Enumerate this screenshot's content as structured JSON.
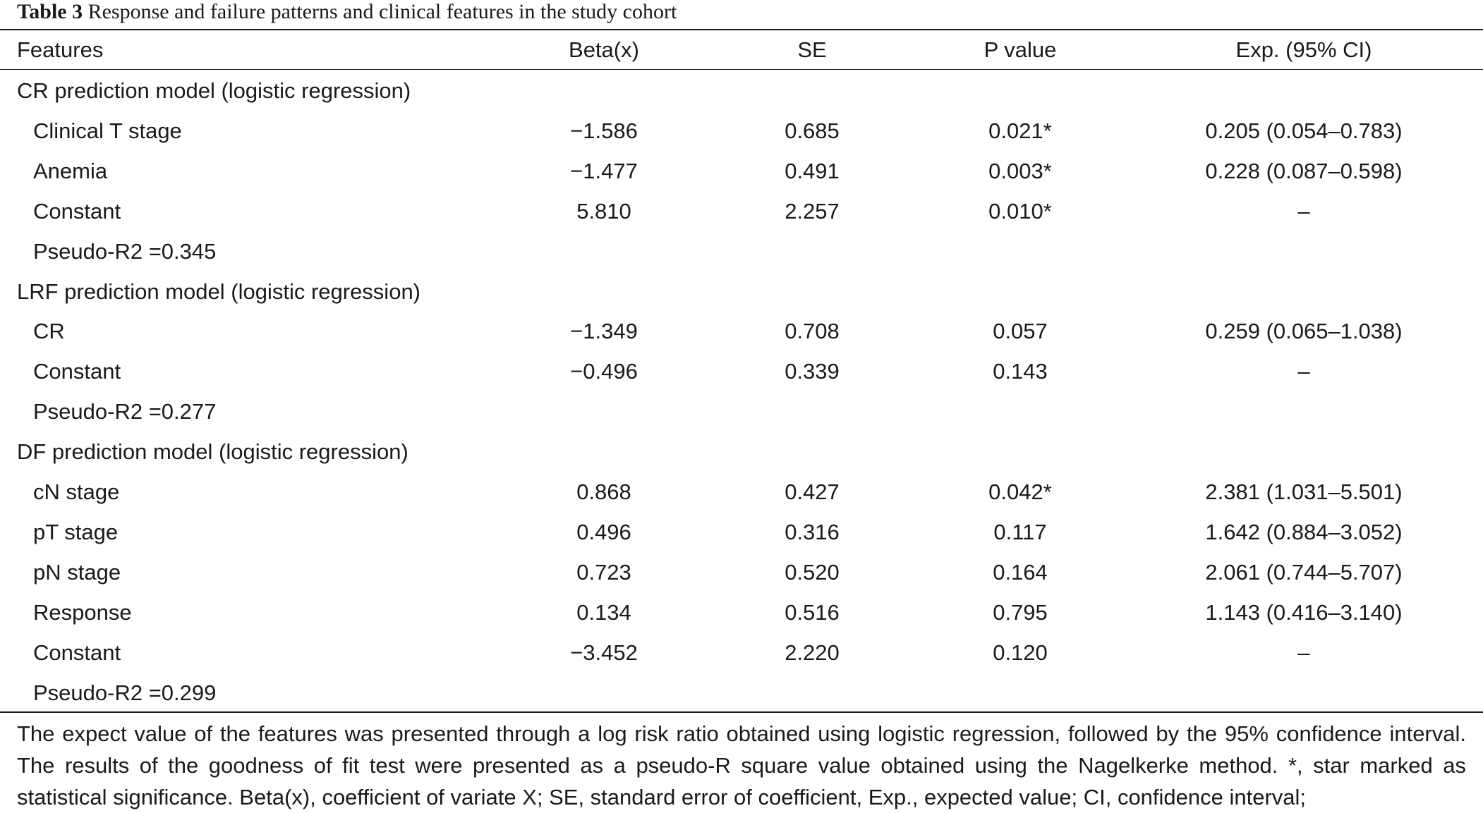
{
  "caption": {
    "label": "Table 3",
    "text": " Response and failure patterns and clinical features in the study cohort"
  },
  "table": {
    "header": [
      "Features",
      "Beta(x)",
      "SE",
      "P value",
      "Exp. (95% CI)"
    ],
    "rows": [
      {
        "kind": "section",
        "label": "CR prediction model (logistic regression)",
        "beta": "",
        "se": "",
        "p": "",
        "exp": ""
      },
      {
        "kind": "item",
        "label": "Clinical T stage",
        "beta": "−1.586",
        "se": "0.685",
        "p": "0.021*",
        "exp": "0.205 (0.054–0.783)"
      },
      {
        "kind": "item",
        "label": "Anemia",
        "beta": "−1.477",
        "se": "0.491",
        "p": "0.003*",
        "exp": "0.228 (0.087–0.598)"
      },
      {
        "kind": "item",
        "label": "Constant",
        "beta": "5.810",
        "se": "2.257",
        "p": "0.010*",
        "exp": "–"
      },
      {
        "kind": "item",
        "label": "Pseudo-R2 =0.345",
        "beta": "",
        "se": "",
        "p": "",
        "exp": ""
      },
      {
        "kind": "section",
        "label": "LRF prediction model (logistic regression)",
        "beta": "",
        "se": "",
        "p": "",
        "exp": ""
      },
      {
        "kind": "item",
        "label": "CR",
        "beta": "−1.349",
        "se": "0.708",
        "p": "0.057",
        "exp": "0.259 (0.065–1.038)"
      },
      {
        "kind": "item",
        "label": "Constant",
        "beta": "−0.496",
        "se": "0.339",
        "p": "0.143",
        "exp": "–"
      },
      {
        "kind": "item",
        "label": "Pseudo-R2 =0.277",
        "beta": "",
        "se": "",
        "p": "",
        "exp": ""
      },
      {
        "kind": "section",
        "label": "DF prediction model (logistic regression)",
        "beta": "",
        "se": "",
        "p": "",
        "exp": ""
      },
      {
        "kind": "item",
        "label": "cN stage",
        "beta": "0.868",
        "se": "0.427",
        "p": "0.042*",
        "exp": "2.381 (1.031–5.501)"
      },
      {
        "kind": "item",
        "label": "pT stage",
        "beta": "0.496",
        "se": "0.316",
        "p": "0.117",
        "exp": "1.642 (0.884–3.052)"
      },
      {
        "kind": "item",
        "label": "pN stage",
        "beta": "0.723",
        "se": "0.520",
        "p": "0.164",
        "exp": "2.061 (0.744–5.707)"
      },
      {
        "kind": "item",
        "label": "Response",
        "beta": "0.134",
        "se": "0.516",
        "p": "0.795",
        "exp": "1.143 (0.416–3.140)"
      },
      {
        "kind": "item",
        "label": "Constant",
        "beta": "−3.452",
        "se": "2.220",
        "p": "0.120",
        "exp": "–"
      },
      {
        "kind": "item",
        "label": "Pseudo-R2 =0.299",
        "beta": "",
        "se": "",
        "p": "",
        "exp": ""
      }
    ]
  },
  "footnote": "The expect value of the features was presented through a log risk ratio obtained using logistic regression, followed by the 95% confidence interval. The results of the goodness of fit test were presented as a pseudo-R square value obtained using the Nagelkerke method. *, star marked as statistical significance. Beta(x), coefficient of variate X; SE, standard error of coefficient, Exp., expected value; CI, confidence interval;"
}
